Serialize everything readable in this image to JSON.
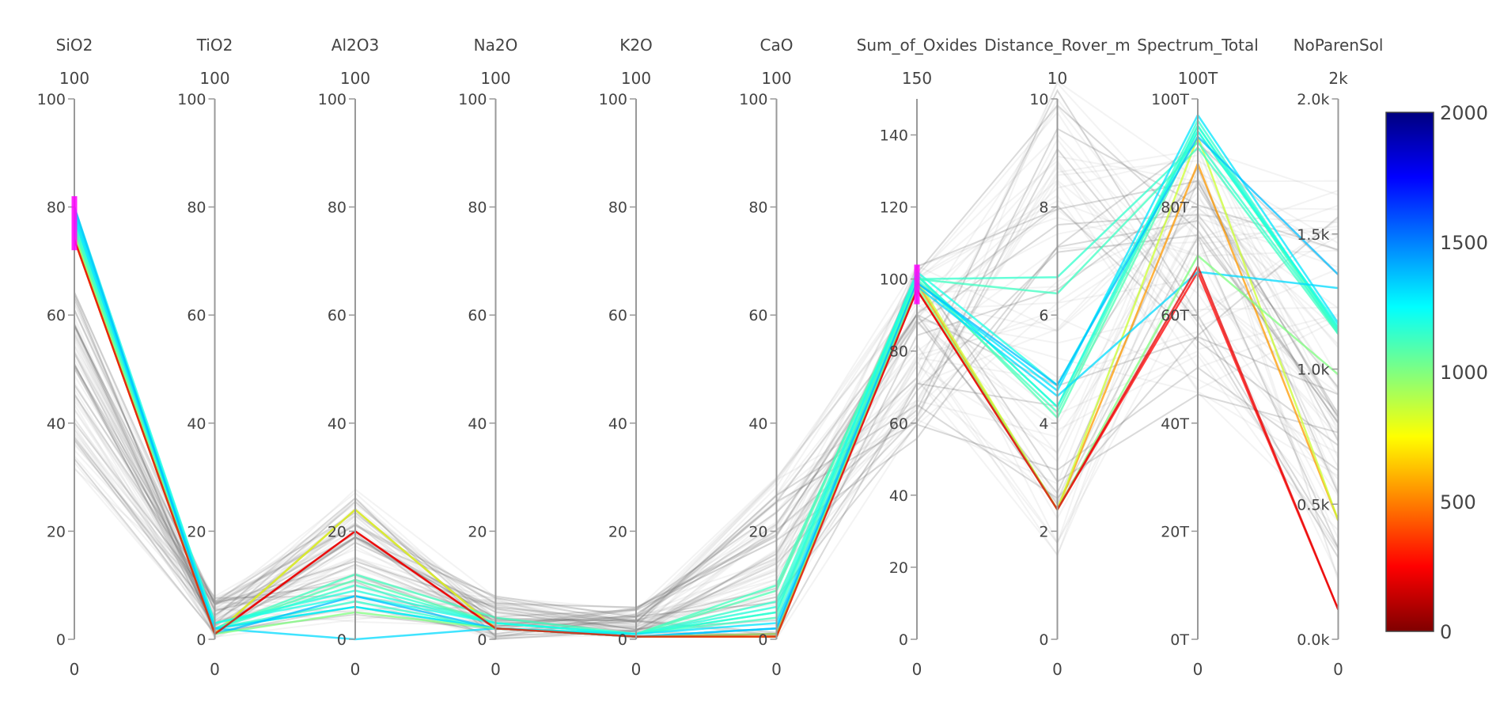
{
  "chart_data": {
    "type": "parallel-coordinates",
    "dimensions": [
      {
        "label": "SiO2",
        "range_top": "100",
        "range_bottom": "0",
        "min": 0,
        "max": 100,
        "ticks": [
          {
            "v": 0,
            "t": "0"
          },
          {
            "v": 20,
            "t": "20"
          },
          {
            "v": 40,
            "t": "40"
          },
          {
            "v": 60,
            "t": "60"
          },
          {
            "v": 80,
            "t": "80"
          },
          {
            "v": 100,
            "t": "100"
          }
        ],
        "brush": [
          72,
          82
        ]
      },
      {
        "label": "TiO2",
        "range_top": "100",
        "range_bottom": "0",
        "min": 0,
        "max": 100,
        "ticks": [
          {
            "v": 0,
            "t": "0"
          },
          {
            "v": 20,
            "t": "20"
          },
          {
            "v": 40,
            "t": "40"
          },
          {
            "v": 60,
            "t": "60"
          },
          {
            "v": 80,
            "t": "80"
          },
          {
            "v": 100,
            "t": "100"
          }
        ]
      },
      {
        "label": "Al2O3",
        "range_top": "100",
        "range_bottom": "0",
        "min": 0,
        "max": 100,
        "ticks": [
          {
            "v": 0,
            "t": "0"
          },
          {
            "v": 20,
            "t": "20"
          },
          {
            "v": 40,
            "t": "40"
          },
          {
            "v": 60,
            "t": "60"
          },
          {
            "v": 80,
            "t": "80"
          },
          {
            "v": 100,
            "t": "100"
          }
        ]
      },
      {
        "label": "Na2O",
        "range_top": "100",
        "range_bottom": "0",
        "min": 0,
        "max": 100,
        "ticks": [
          {
            "v": 0,
            "t": "0"
          },
          {
            "v": 20,
            "t": "20"
          },
          {
            "v": 40,
            "t": "40"
          },
          {
            "v": 60,
            "t": "60"
          },
          {
            "v": 80,
            "t": "80"
          },
          {
            "v": 100,
            "t": "100"
          }
        ]
      },
      {
        "label": "K2O",
        "range_top": "100",
        "range_bottom": "0",
        "min": 0,
        "max": 100,
        "ticks": [
          {
            "v": 0,
            "t": "0"
          },
          {
            "v": 20,
            "t": "20"
          },
          {
            "v": 40,
            "t": "40"
          },
          {
            "v": 60,
            "t": "60"
          },
          {
            "v": 80,
            "t": "80"
          },
          {
            "v": 100,
            "t": "100"
          }
        ]
      },
      {
        "label": "CaO",
        "range_top": "100",
        "range_bottom": "0",
        "min": 0,
        "max": 100,
        "ticks": [
          {
            "v": 0,
            "t": "0"
          },
          {
            "v": 20,
            "t": "20"
          },
          {
            "v": 40,
            "t": "40"
          },
          {
            "v": 60,
            "t": "60"
          },
          {
            "v": 80,
            "t": "80"
          },
          {
            "v": 100,
            "t": "100"
          }
        ]
      },
      {
        "label": "Sum_of_Oxides",
        "range_top": "150",
        "range_bottom": "0",
        "min": 0,
        "max": 150,
        "ticks": [
          {
            "v": 0,
            "t": "0"
          },
          {
            "v": 20,
            "t": "20"
          },
          {
            "v": 40,
            "t": "40"
          },
          {
            "v": 60,
            "t": "60"
          },
          {
            "v": 80,
            "t": "80"
          },
          {
            "v": 100,
            "t": "100"
          },
          {
            "v": 120,
            "t": "120"
          },
          {
            "v": 140,
            "t": "140"
          }
        ],
        "brush": [
          93,
          104
        ]
      },
      {
        "label": "Distance_Rover_m",
        "range_top": "10",
        "range_bottom": "0",
        "min": 0,
        "max": 10,
        "ticks": [
          {
            "v": 0,
            "t": "0"
          },
          {
            "v": 2,
            "t": "2"
          },
          {
            "v": 4,
            "t": "4"
          },
          {
            "v": 6,
            "t": "6"
          },
          {
            "v": 8,
            "t": "8"
          },
          {
            "v": 10,
            "t": "10"
          }
        ]
      },
      {
        "label": "Spectrum_Total",
        "range_top": "100T",
        "range_bottom": "0",
        "min": 0,
        "max": 100,
        "ticks": [
          {
            "v": 0,
            "t": "0T"
          },
          {
            "v": 20,
            "t": "20T"
          },
          {
            "v": 40,
            "t": "40T"
          },
          {
            "v": 60,
            "t": "60T"
          },
          {
            "v": 80,
            "t": "80T"
          },
          {
            "v": 100,
            "t": "100T"
          }
        ]
      },
      {
        "label": "NoParenSol",
        "range_top": "2k",
        "range_bottom": "0",
        "min": 0,
        "max": 2000,
        "ticks": [
          {
            "v": 0,
            "t": "0.0k"
          },
          {
            "v": 500,
            "t": "0.5k"
          },
          {
            "v": 1000,
            "t": "1.0k"
          },
          {
            "v": 1500,
            "t": "1.5k"
          },
          {
            "v": 2000,
            "t": "2.0k"
          }
        ]
      }
    ],
    "colorbar": {
      "min": 0,
      "max": 2000,
      "ticks": [
        {
          "v": 0,
          "t": "0"
        },
        {
          "v": 500,
          "t": "500"
        },
        {
          "v": 1000,
          "t": "1000"
        },
        {
          "v": 1500,
          "t": "1500"
        },
        {
          "v": 2000,
          "t": "2000"
        }
      ],
      "colorscale": [
        "#7f0000",
        "#ff0000",
        "#ff8000",
        "#ffff00",
        "#80ff80",
        "#00ffff",
        "#0080ff",
        "#0000ff",
        "#00007f"
      ]
    },
    "highlighted": [
      {
        "values": [
          74,
          1,
          20,
          2,
          0.5,
          1,
          97,
          2.4,
          68,
          110
        ],
        "color_value": 250
      },
      {
        "values": [
          74,
          1,
          24,
          2,
          0.5,
          0.5,
          99,
          2.4,
          88,
          440
        ],
        "color_value": 550
      },
      {
        "values": [
          75,
          1,
          24,
          2,
          0.5,
          0.5,
          100,
          2.4,
          93,
          440
        ],
        "color_value": 850
      },
      {
        "values": [
          76,
          2,
          11,
          3,
          1,
          9,
          101,
          4.1,
          94,
          1150
        ],
        "color_value": 1100
      },
      {
        "values": [
          77,
          2,
          12,
          4,
          1,
          10,
          100,
          4.2,
          95,
          1130
        ],
        "color_value": 1120
      },
      {
        "values": [
          78,
          2,
          10,
          3,
          1,
          7,
          101,
          4.3,
          96,
          1140
        ],
        "color_value": 1150
      },
      {
        "values": [
          79,
          3,
          9,
          3,
          1,
          6,
          101,
          4.3,
          95,
          1150
        ],
        "color_value": 1180
      },
      {
        "values": [
          80,
          3,
          8,
          3,
          1,
          5,
          102,
          4.7,
          94,
          1160
        ],
        "color_value": 1200
      },
      {
        "values": [
          77,
          2,
          7,
          2,
          1,
          5,
          100,
          6.7,
          92,
          1140
        ],
        "color_value": 1150
      },
      {
        "values": [
          76,
          2,
          6,
          2,
          1,
          4,
          100,
          6.4,
          91,
          1130
        ],
        "color_value": 1130
      },
      {
        "values": [
          78,
          2,
          6,
          2,
          1,
          3,
          99,
          4.6,
          97,
          1170
        ],
        "color_value": 1300
      },
      {
        "values": [
          79,
          2,
          0,
          2,
          0.5,
          2,
          98,
          4.5,
          68,
          1300
        ],
        "color_value": 1320
      },
      {
        "values": [
          80,
          1,
          8,
          2,
          0.5,
          2,
          99,
          4.7,
          93,
          1350
        ],
        "color_value": 1380
      },
      {
        "values": [
          75,
          1,
          5,
          2,
          0.5,
          1,
          98,
          2.4,
          71,
          980
        ],
        "color_value": 1000
      },
      {
        "values": [
          74,
          1,
          20,
          2,
          0.5,
          0.5,
          97,
          2.4,
          69,
          110
        ],
        "color_value": 200
      }
    ],
    "background_line_count": 70
  }
}
